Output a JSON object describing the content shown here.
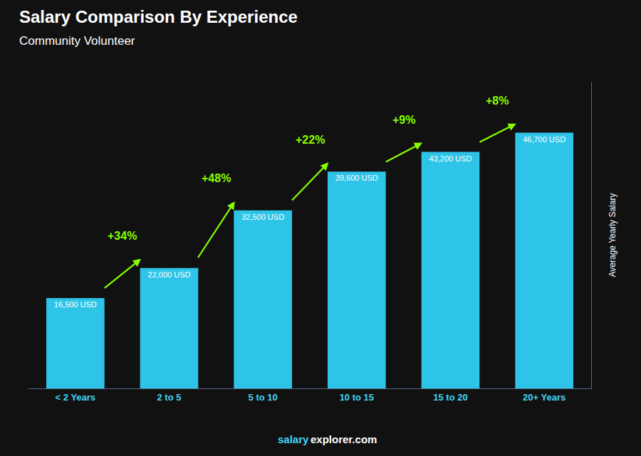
{
  "chart_data": {
    "type": "bar",
    "title": "Salary Comparison By Experience",
    "subtitle": "Community Volunteer",
    "categories": [
      "< 2 Years",
      "2 to 5",
      "5 to 10",
      "10 to 15",
      "15 to 20",
      "20+ Years"
    ],
    "values": [
      16500,
      22000,
      32500,
      39600,
      43200,
      46700
    ],
    "value_labels": [
      "16,500 USD",
      "22,000 USD",
      "32,500 USD",
      "39,600 USD",
      "43,200 USD",
      "46,700 USD"
    ],
    "data_labels": true,
    "color": "#2ec4e8",
    "ylabel": "Average Yearly Salary",
    "ylim": [
      0,
      56000
    ],
    "tick_labels": "x",
    "grid": false,
    "annotations": [
      {
        "text": "+34%",
        "from": "< 2 Years",
        "to": "2 to 5",
        "color": "#88ff00"
      },
      {
        "text": "+48%",
        "from": "2 to 5",
        "to": "5 to 10",
        "color": "#88ff00"
      },
      {
        "text": "+22%",
        "from": "5 to 10",
        "to": "10 to 15",
        "color": "#88ff00"
      },
      {
        "text": "+9%",
        "from": "10 to 15",
        "to": "15 to 20",
        "color": "#88ff00"
      },
      {
        "text": "+8%",
        "from": "15 to 20",
        "to": "20+ Years",
        "color": "#88ff00"
      }
    ],
    "footer": [
      "salary",
      "explorer.com"
    ]
  }
}
